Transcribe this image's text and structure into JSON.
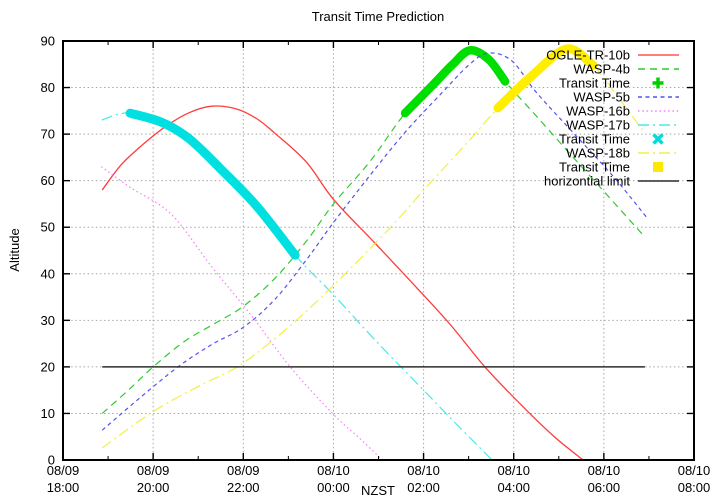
{
  "page": {
    "background": "#ffffff"
  },
  "chart_data": {
    "type": "line",
    "title": "Transit Time Prediction",
    "xlabel": "NZST",
    "ylabel": "Altitude",
    "grid": true,
    "legend_position": "top-right-inside",
    "axes": {
      "x": {
        "min": 0,
        "max": 14,
        "px": [
          63,
          694
        ],
        "minor_step": 1,
        "ticks": [
          {
            "v": 0,
            "date": "08/09",
            "time": "18:00"
          },
          {
            "v": 2,
            "date": "08/09",
            "time": "20:00"
          },
          {
            "v": 4,
            "date": "08/09",
            "time": "22:00"
          },
          {
            "v": 6,
            "date": "08/10",
            "time": "00:00"
          },
          {
            "v": 8,
            "date": "08/10",
            "time": "02:00"
          },
          {
            "v": 10,
            "date": "08/10",
            "time": "04:00"
          },
          {
            "v": 12,
            "date": "08/10",
            "time": "06:00"
          },
          {
            "v": 14,
            "date": "08/10",
            "time": "08:00"
          }
        ]
      },
      "y": {
        "min": 0,
        "max": 90,
        "px": [
          460,
          41
        ],
        "ticks": [
          0,
          10,
          20,
          30,
          40,
          50,
          60,
          70,
          80,
          90
        ]
      }
    },
    "series": [
      {
        "name": "OGLE-TR-10b",
        "role": "line",
        "color": "#ff3b3b",
        "dash": "",
        "width": 1.3,
        "points": [
          [
            0.87,
            58
          ],
          [
            1.3,
            63.5
          ],
          [
            1.8,
            68
          ],
          [
            2.3,
            71.8
          ],
          [
            2.8,
            74.6
          ],
          [
            3.3,
            76
          ],
          [
            3.85,
            75.4
          ],
          [
            4.3,
            73.3
          ],
          [
            4.7,
            70.2
          ],
          [
            5.4,
            64
          ],
          [
            6.0,
            56
          ],
          [
            6.9,
            46.8
          ],
          [
            7.8,
            37.5
          ],
          [
            8.6,
            29
          ],
          [
            9.36,
            20
          ],
          [
            10.2,
            11.5
          ],
          [
            10.9,
            5
          ],
          [
            11.54,
            0
          ]
        ]
      },
      {
        "name": "WASP-4b",
        "role": "line",
        "color": "#2ecc2e",
        "dash": "7,5",
        "width": 1.2,
        "points": [
          [
            0.87,
            10
          ],
          [
            1.45,
            15
          ],
          [
            2.0,
            20
          ],
          [
            2.7,
            25.5
          ],
          [
            3.4,
            29.5
          ],
          [
            4.0,
            33
          ],
          [
            4.7,
            39
          ],
          [
            5.4,
            47
          ],
          [
            6.0,
            55
          ],
          [
            6.8,
            64
          ],
          [
            7.59,
            74.5
          ],
          [
            8.2,
            80.5
          ],
          [
            8.65,
            85
          ],
          [
            9.03,
            88
          ],
          [
            9.45,
            86
          ],
          [
            9.81,
            81.3
          ],
          [
            10.5,
            73.9
          ],
          [
            11.2,
            66.3
          ],
          [
            12.0,
            57.7
          ],
          [
            12.91,
            47.9
          ]
        ]
      },
      {
        "name": "WASP-4b Transit Time",
        "role": "transit-band",
        "color": "#00dd00",
        "dash": "",
        "width": 8.5,
        "points": [
          [
            7.59,
            74.5
          ],
          [
            8.2,
            80.5
          ],
          [
            8.65,
            85
          ],
          [
            9.03,
            88
          ],
          [
            9.45,
            86
          ],
          [
            9.81,
            81.3
          ]
        ]
      },
      {
        "name": "WASP-5b",
        "role": "line",
        "color": "#5353ef",
        "dash": "4,3.5",
        "width": 1.2,
        "points": [
          [
            0.87,
            6.4
          ],
          [
            1.7,
            13.3
          ],
          [
            2.55,
            20
          ],
          [
            3.3,
            24.8
          ],
          [
            4.0,
            28.5
          ],
          [
            4.7,
            34.5
          ],
          [
            5.4,
            43
          ],
          [
            6.0,
            51
          ],
          [
            6.8,
            61
          ],
          [
            7.6,
            70.5
          ],
          [
            8.4,
            78.8
          ],
          [
            9.0,
            84.8
          ],
          [
            9.43,
            87.4
          ],
          [
            9.95,
            85.8
          ],
          [
            10.5,
            79
          ],
          [
            11.3,
            70.5
          ],
          [
            12.2,
            61
          ],
          [
            12.96,
            52
          ]
        ]
      },
      {
        "name": "WASP-16b",
        "role": "line",
        "color": "#f77ef7",
        "dash": "1.5,2.8",
        "width": 1.2,
        "points": [
          [
            0.85,
            63
          ],
          [
            1.5,
            58.5
          ],
          [
            2.4,
            52.8
          ],
          [
            3.3,
            41.5
          ],
          [
            4.2,
            30.8
          ],
          [
            5.04,
            20
          ],
          [
            6.0,
            9.8
          ],
          [
            6.6,
            4.5
          ],
          [
            7.08,
            0
          ]
        ]
      },
      {
        "name": "WASP-17b",
        "role": "line",
        "color": "#49e8e8",
        "dash": "11,4,2,4",
        "width": 1.2,
        "points": [
          [
            0.86,
            73
          ],
          [
            1.2,
            74.2
          ],
          [
            1.6,
            74.5
          ],
          [
            2.2,
            72.5
          ],
          [
            2.8,
            69
          ],
          [
            3.5,
            62.5
          ],
          [
            4.3,
            54.5
          ],
          [
            5.15,
            44
          ],
          [
            6.0,
            35.5
          ],
          [
            6.9,
            26
          ],
          [
            7.8,
            17
          ],
          [
            8.7,
            8
          ],
          [
            9.52,
            0
          ]
        ]
      },
      {
        "name": "WASP-17b Transit Time",
        "role": "transit-band",
        "color": "#00e0e0",
        "dash": "",
        "width": 9,
        "points": [
          [
            1.49,
            74.5
          ],
          [
            2.2,
            72.5
          ],
          [
            2.8,
            69
          ],
          [
            3.5,
            62.5
          ],
          [
            4.3,
            54.5
          ],
          [
            5.15,
            44
          ]
        ]
      },
      {
        "name": "WASP-18b",
        "role": "line",
        "color": "#f0f046",
        "dash": "11,4,2,4",
        "width": 1.2,
        "points": [
          [
            0.87,
            2.6
          ],
          [
            2.0,
            10.4
          ],
          [
            3.0,
            15.8
          ],
          [
            3.93,
            20.4
          ],
          [
            5.0,
            28.5
          ],
          [
            6.0,
            37.5
          ],
          [
            7.25,
            49.8
          ],
          [
            8.07,
            58.7
          ],
          [
            9.0,
            68.5
          ],
          [
            9.65,
            75.6
          ],
          [
            10.4,
            82.5
          ],
          [
            11.18,
            88.3
          ],
          [
            11.76,
            84.8
          ],
          [
            12.35,
            77.5
          ],
          [
            12.91,
            70.2
          ]
        ]
      },
      {
        "name": "WASP-18b Transit Time",
        "role": "transit-band",
        "color": "#ffee00",
        "dash": "",
        "width": 9,
        "points": [
          [
            9.65,
            75.6
          ],
          [
            10.4,
            82.5
          ],
          [
            11.18,
            88.3
          ],
          [
            11.76,
            84.8
          ]
        ]
      },
      {
        "name": "horizontial limit",
        "role": "line",
        "color": "#2e2e2e",
        "dash": "",
        "width": 1.5,
        "points": [
          [
            0.87,
            20
          ],
          [
            12.91,
            20
          ]
        ]
      }
    ],
    "legend": {
      "text_right_x": 630,
      "sample_x1": 638,
      "sample_x2": 679,
      "marker_x": 658,
      "row_start_y": 55,
      "row_step": 14,
      "entries": [
        {
          "label": "OGLE-TR-10b",
          "type": "line",
          "color": "#ff5555",
          "dash": ""
        },
        {
          "label": "WASP-4b",
          "type": "line",
          "color": "#2ecc2e",
          "dash": "7,5"
        },
        {
          "label": "Transit Time",
          "type": "marker",
          "marker": "plus",
          "color": "#00cc00"
        },
        {
          "label": "WASP-5b",
          "type": "line",
          "color": "#5353ef",
          "dash": "4,3.5"
        },
        {
          "label": "WASP-16b",
          "type": "line",
          "color": "#f77ef7",
          "dash": "1.5,2.8"
        },
        {
          "label": "WASP-17b",
          "type": "line",
          "color": "#49e8e8",
          "dash": "11,4,2,4"
        },
        {
          "label": "Transit Time",
          "type": "marker",
          "marker": "x",
          "color": "#00dcdc"
        },
        {
          "label": "WASP-18b",
          "type": "line",
          "color": "#f0f046",
          "dash": "11,4,2,4"
        },
        {
          "label": "Transit Time",
          "type": "marker",
          "marker": "square",
          "color": "#ffe800"
        },
        {
          "label": "horizontial limit",
          "type": "line",
          "color": "#2e2e2e",
          "dash": ""
        }
      ]
    },
    "style": {
      "border_color": "#000000",
      "grid_color": "#a8a8a8",
      "grid_dash": "1.5,2.6",
      "tick_major_len": 7,
      "tick_minor_len": 4,
      "font_size": 13
    }
  }
}
